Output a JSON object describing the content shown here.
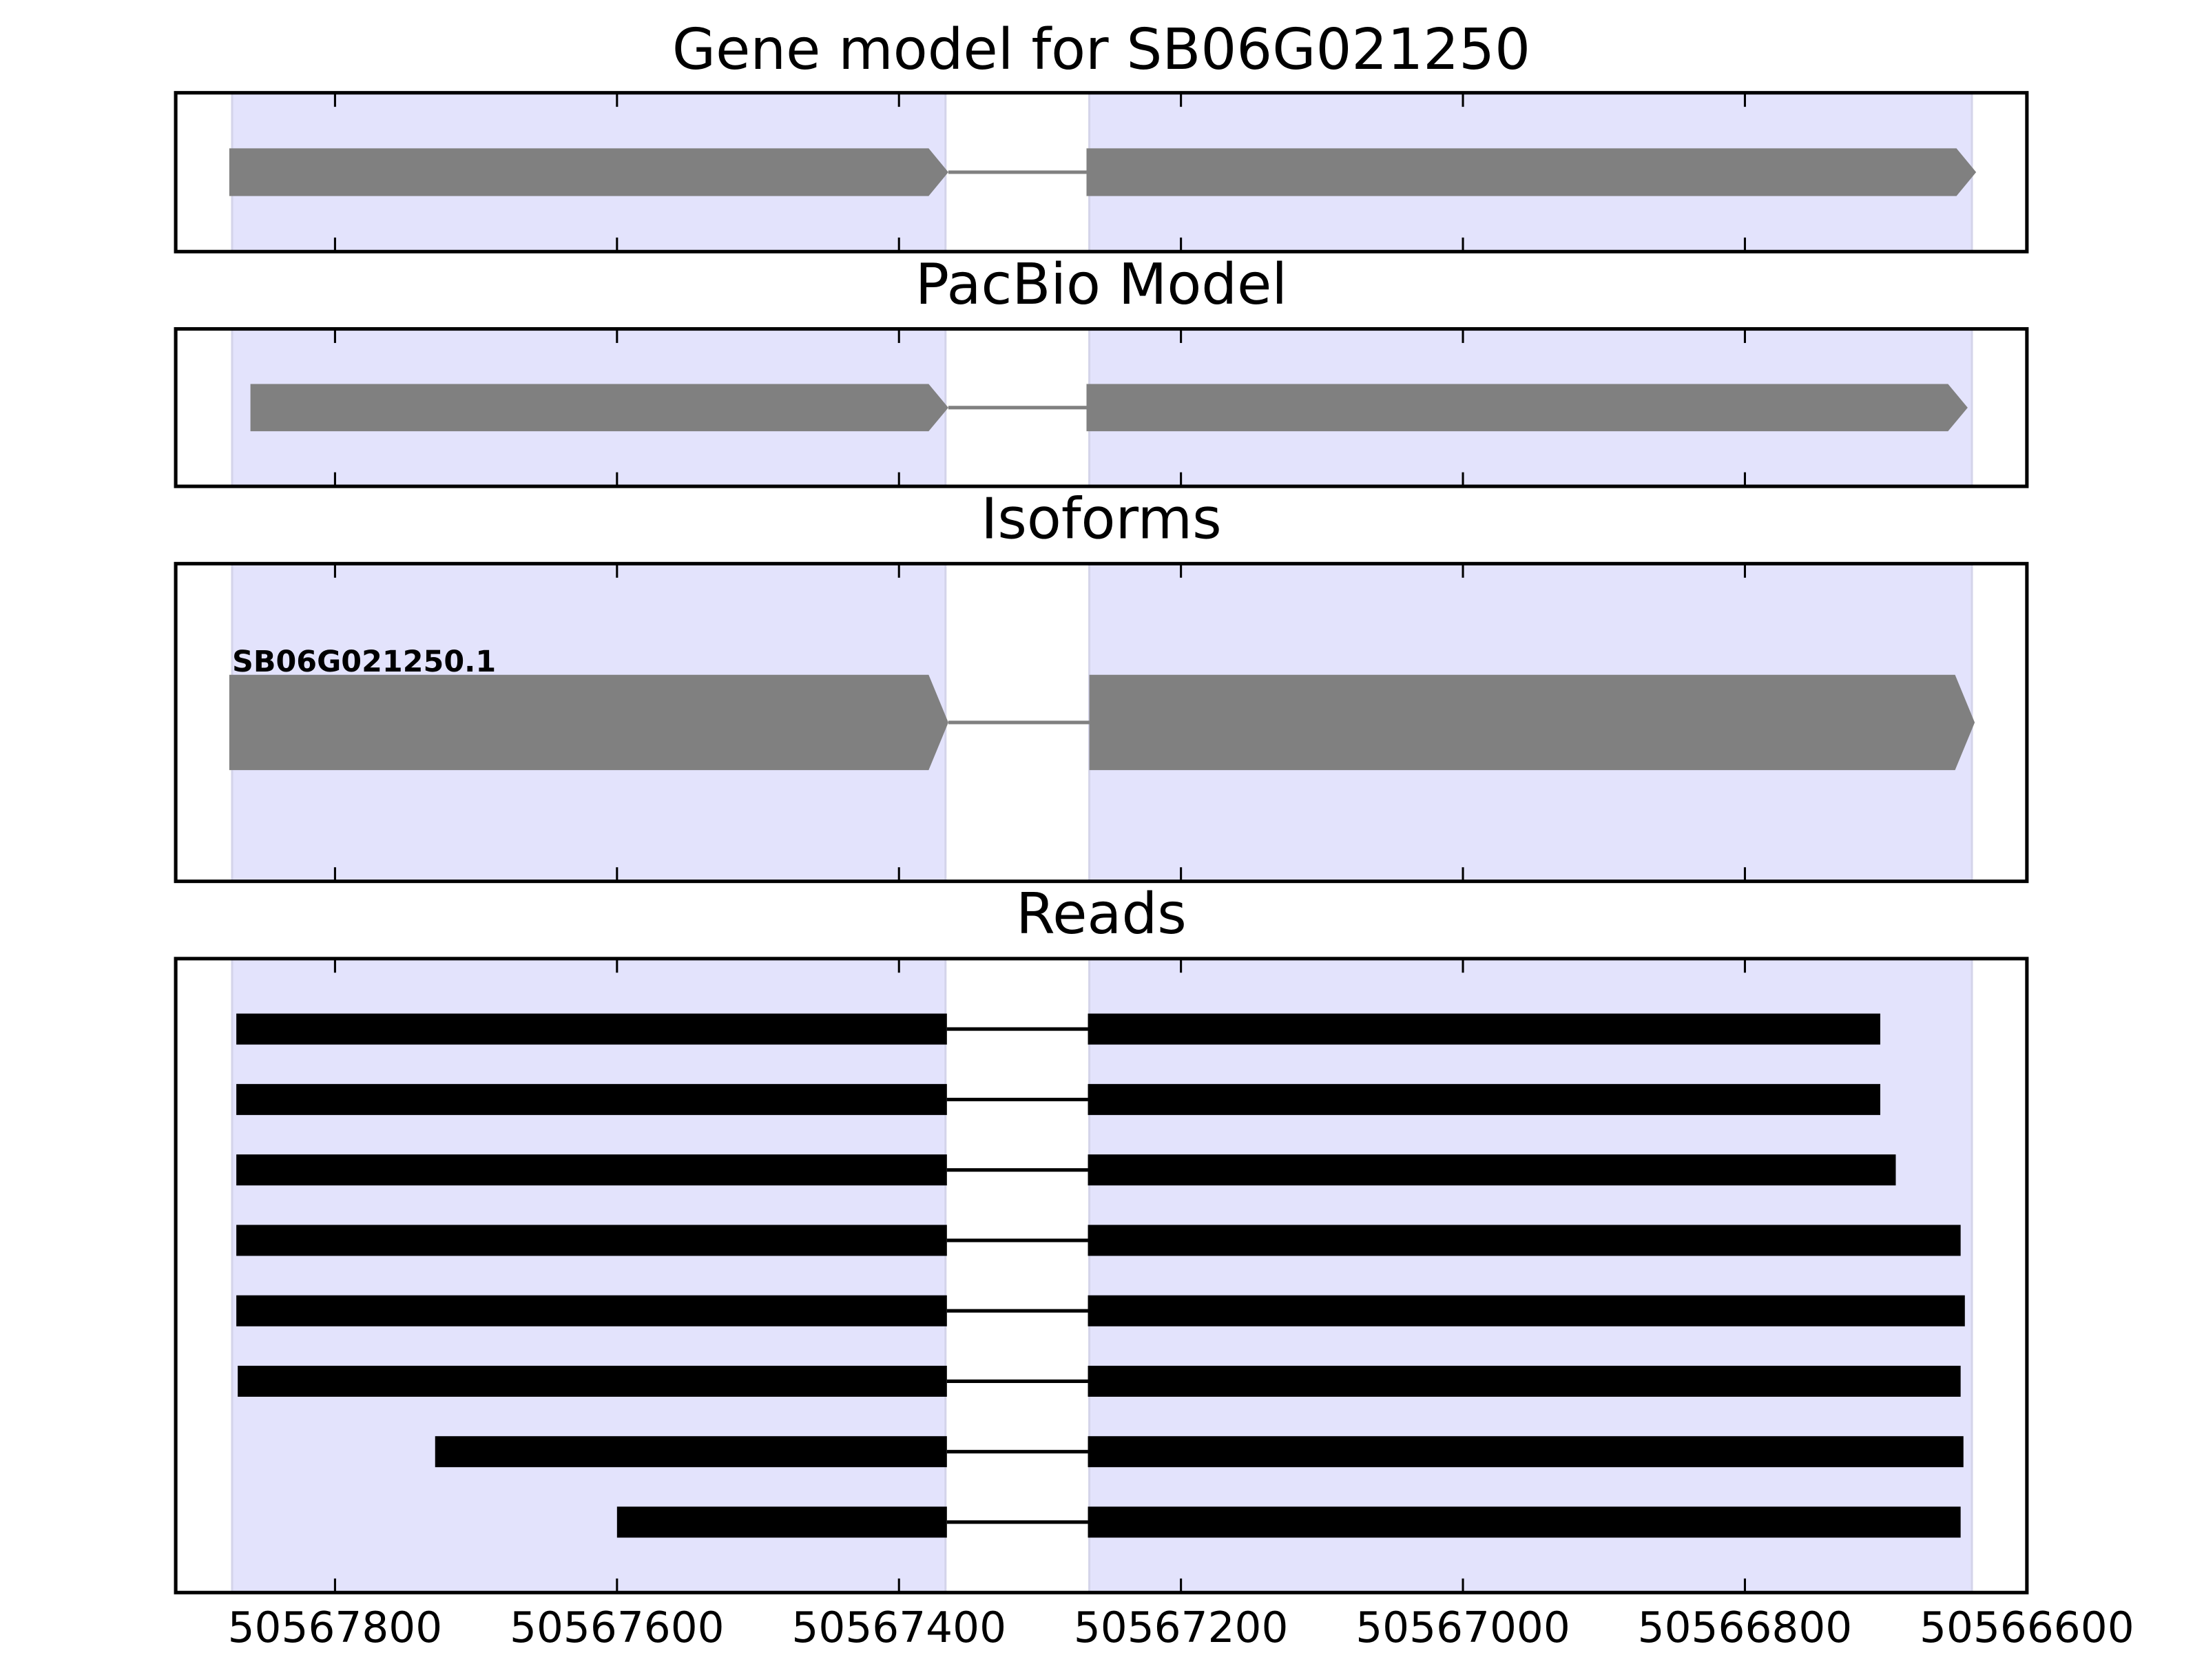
{
  "chart_data": [
    {
      "type": "gene-model",
      "title": "Gene model for SB06G021250",
      "xlim": [
        50567913,
        50566600
      ],
      "xticks": [
        50567800,
        50567600,
        50567400,
        50567200,
        50567000,
        50566800,
        50566600
      ],
      "xtick_labels": false,
      "shaded": [
        [
          50567873,
          50567367
        ],
        [
          50567265,
          50566639
        ]
      ],
      "shade_color": "#e3e3fc",
      "style": "arrow",
      "features": [
        {
          "color": "#808080",
          "exons": [
            [
              50567875,
              50567365
            ],
            [
              50567267,
              50566636
            ]
          ]
        }
      ]
    },
    {
      "type": "gene-model",
      "title": "PacBio Model",
      "xlim": [
        50567913,
        50566600
      ],
      "xticks": [
        50567800,
        50567600,
        50567400,
        50567200,
        50567000,
        50566800,
        50566600
      ],
      "xtick_labels": false,
      "shaded": [
        [
          50567873,
          50567367
        ],
        [
          50567265,
          50566639
        ]
      ],
      "shade_color": "#e3e3fc",
      "style": "arrow",
      "features": [
        {
          "color": "#808080",
          "exons": [
            [
              50567860,
              50567365
            ],
            [
              50567267,
              50566642
            ]
          ]
        }
      ]
    },
    {
      "type": "gene-model",
      "title": "Isoforms",
      "xlim": [
        50567913,
        50566600
      ],
      "xticks": [
        50567800,
        50567600,
        50567400,
        50567200,
        50567000,
        50566800,
        50566600
      ],
      "xtick_labels": false,
      "shaded": [
        [
          50567873,
          50567367
        ],
        [
          50567265,
          50566639
        ]
      ],
      "shade_color": "#e3e3fc",
      "style": "arrow",
      "features": [
        {
          "label": "SB06G021250.1",
          "color": "#808080",
          "exons": [
            [
              50567875,
              50567365
            ],
            [
              50567265,
              50566637
            ]
          ]
        }
      ]
    },
    {
      "type": "gene-model",
      "title": "Reads",
      "xlim": [
        50567913,
        50566600
      ],
      "xticks": [
        50567800,
        50567600,
        50567400,
        50567200,
        50567000,
        50566800,
        50566600
      ],
      "xtick_labels": true,
      "shaded": [
        [
          50567873,
          50567367
        ],
        [
          50567265,
          50566639
        ]
      ],
      "shade_color": "#e3e3fc",
      "style": "bar",
      "features": [
        {
          "color": "#000000",
          "exons": [
            [
              50567870,
              50567366
            ],
            [
              50567266,
              50566704
            ]
          ]
        },
        {
          "color": "#000000",
          "exons": [
            [
              50567870,
              50567366
            ],
            [
              50567266,
              50566704
            ]
          ]
        },
        {
          "color": "#000000",
          "exons": [
            [
              50567870,
              50567366
            ],
            [
              50567266,
              50566693
            ]
          ]
        },
        {
          "color": "#000000",
          "exons": [
            [
              50567870,
              50567366
            ],
            [
              50567266,
              50566647
            ]
          ]
        },
        {
          "color": "#000000",
          "exons": [
            [
              50567870,
              50567366
            ],
            [
              50567266,
              50566644
            ]
          ]
        },
        {
          "color": "#000000",
          "exons": [
            [
              50567869,
              50567366
            ],
            [
              50567266,
              50566647
            ]
          ]
        },
        {
          "color": "#000000",
          "exons": [
            [
              50567729,
              50567366
            ],
            [
              50567266,
              50566645
            ]
          ]
        },
        {
          "color": "#000000",
          "exons": [
            [
              50567600,
              50567366
            ],
            [
              50567266,
              50566647
            ]
          ]
        }
      ]
    }
  ]
}
